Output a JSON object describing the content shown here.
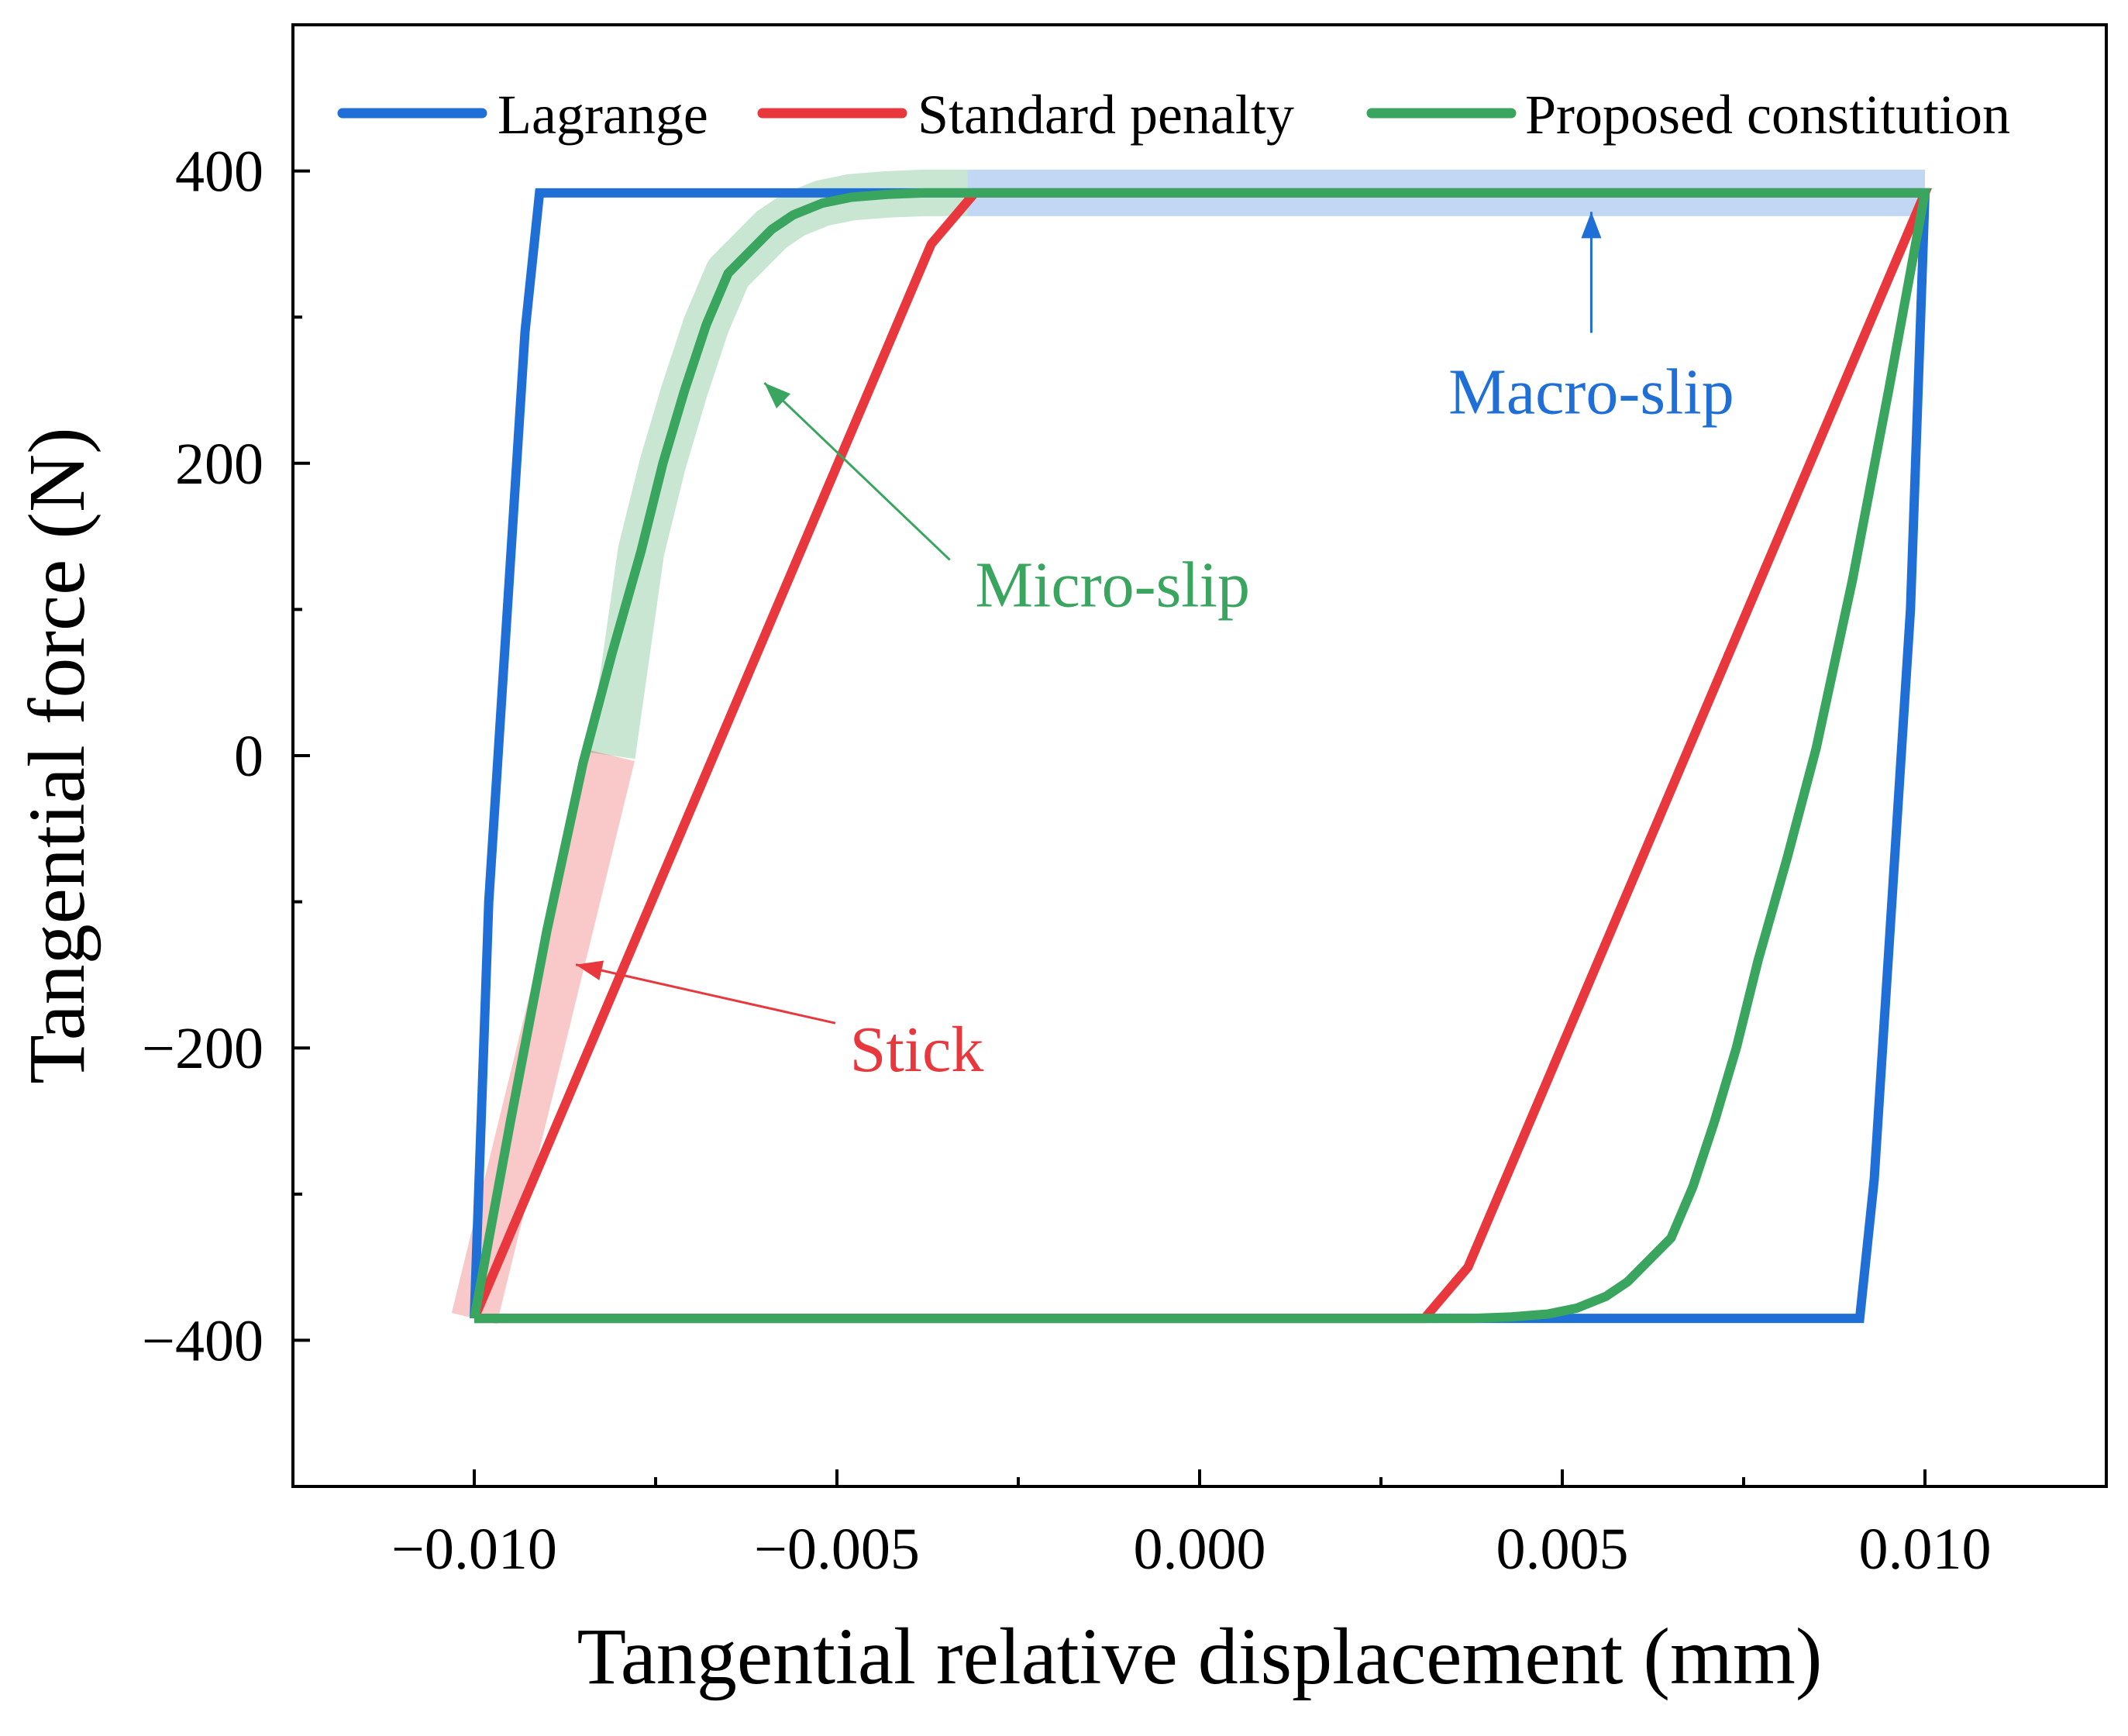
{
  "chart_data": {
    "type": "line",
    "title": "",
    "xlabel": "Tangential relative displacement (mm)",
    "ylabel": "Tangential force (N)",
    "xlim": [
      -0.0125,
      0.0125
    ],
    "ylim": [
      -500,
      500
    ],
    "x_ticks": [
      -0.01,
      -0.005,
      0.0,
      0.005,
      0.01
    ],
    "x_tick_labels": [
      "−0.010",
      "−0.005",
      "0.000",
      "0.005",
      "0.010"
    ],
    "x_minor_ticks": [
      -0.0075,
      -0.0025,
      0.0025,
      0.0075
    ],
    "y_ticks": [
      -400,
      -200,
      0,
      200,
      400
    ],
    "y_tick_labels": [
      "−400",
      "−200",
      "0",
      "200",
      "400"
    ],
    "y_minor_ticks": [
      -300,
      -100,
      100,
      300
    ],
    "grid": false,
    "legend_position": "top",
    "series": [
      {
        "name": "Lagrange",
        "color": "#1f6fd6",
        "x": [
          -0.01,
          -0.0098,
          -0.0093,
          -0.0091,
          0.01,
          0.0098,
          0.0093,
          0.0091,
          -0.01
        ],
        "y": [
          -385,
          -100,
          290,
          385,
          385,
          100,
          -290,
          -385,
          -385
        ]
      },
      {
        "name": "Standard penalty",
        "color": "#e8383d",
        "x": [
          -0.01,
          -0.0037,
          -0.0031,
          0.01,
          0.0037,
          0.0031,
          -0.01
        ],
        "y": [
          -385,
          350,
          385,
          385,
          -350,
          -385,
          -385
        ]
      },
      {
        "name": "Proposed constitution",
        "color": "#3aa55e",
        "x": [
          -0.01,
          -0.0095,
          -0.009,
          -0.0085,
          -0.0081,
          -0.0077,
          -0.0074,
          -0.0071,
          -0.0068,
          -0.0065,
          -0.0062,
          -0.0059,
          -0.0056,
          -0.0052,
          -0.0048,
          -0.0043,
          -0.0038,
          -0.0032,
          0.01,
          0.0095,
          0.009,
          0.0085,
          0.0081,
          0.0077,
          0.0074,
          0.0071,
          0.0068,
          0.0065,
          0.0062,
          0.0059,
          0.0056,
          0.0052,
          0.0048,
          0.0043,
          0.0038,
          0.0032,
          -0.01
        ],
        "y": [
          -385,
          -250,
          -120,
          -5,
          70,
          140,
          200,
          250,
          295,
          330,
          345,
          360,
          370,
          378,
          382,
          384,
          385,
          385,
          385,
          250,
          120,
          5,
          -70,
          -140,
          -200,
          -250,
          -295,
          -330,
          -345,
          -360,
          -370,
          -378,
          -382,
          -384,
          -385,
          -385,
          -385
        ]
      }
    ],
    "highlights": [
      {
        "label": "Macro-slip",
        "color": "#1f6fd6",
        "x": [
          -0.0032,
          0.01
        ],
        "y": [
          385,
          385
        ]
      },
      {
        "label": "Micro-slip",
        "color": "#3aa55e",
        "x": [
          -0.0081,
          -0.0077,
          -0.0074,
          -0.0071,
          -0.0068,
          -0.0065,
          -0.0062,
          -0.0059,
          -0.0056,
          -0.0052,
          -0.0048,
          -0.0043,
          -0.0038,
          -0.0032
        ],
        "y": [
          0,
          140,
          200,
          250,
          295,
          330,
          345,
          360,
          370,
          378,
          382,
          384,
          385,
          385
        ]
      },
      {
        "label": "Stick",
        "color": "#e8383d",
        "x": [
          -0.01,
          -0.0081
        ],
        "y": [
          -385,
          0
        ]
      }
    ],
    "annotations": [
      {
        "text": "Macro-slip",
        "color": "#1f6fd6",
        "text_x": 0.0054,
        "text_y": 250,
        "arrow_to_x": 0.0054,
        "arrow_to_y": 372
      },
      {
        "text": "Micro-slip",
        "color": "#3aa55e",
        "text_x": -0.0012,
        "text_y": 118,
        "arrow_to_x": -0.006,
        "arrow_to_y": 255
      },
      {
        "text": "Stick",
        "color": "#e8383d",
        "text_x": -0.0039,
        "text_y": -200,
        "arrow_to_x": -0.0086,
        "arrow_to_y": -143
      }
    ]
  }
}
